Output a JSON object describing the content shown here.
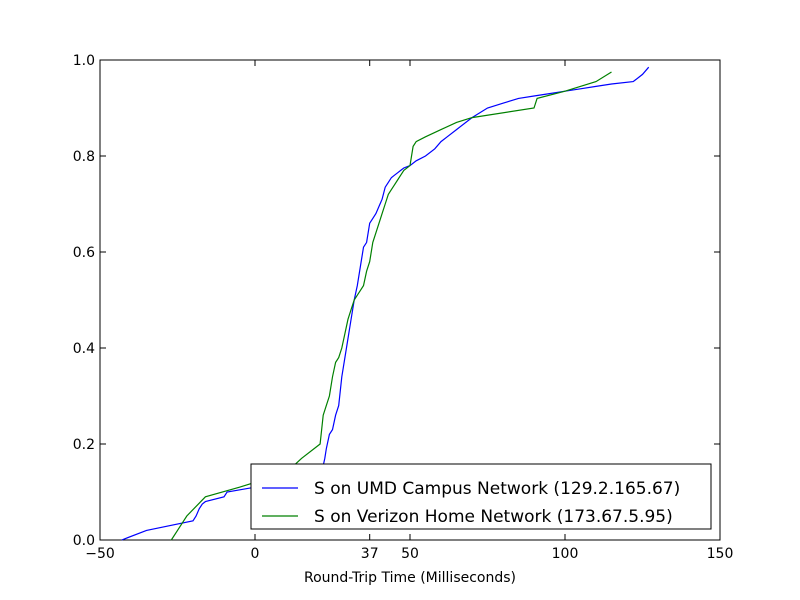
{
  "chart_data": {
    "type": "line",
    "title": "",
    "xlabel": "Round-Trip Time (Milliseconds)",
    "ylabel": "",
    "xlim": [
      -50,
      150
    ],
    "ylim": [
      0.0,
      1.0
    ],
    "grid": false,
    "legend_position": "bottom-right",
    "x_ticks": [
      {
        "value": -50,
        "label": "−50"
      },
      {
        "value": 0,
        "label": "0"
      },
      {
        "value": 37,
        "label": "37"
      },
      {
        "value": 50,
        "label": "50"
      },
      {
        "value": 100,
        "label": "100"
      },
      {
        "value": 150,
        "label": "150"
      }
    ],
    "y_ticks": [
      {
        "value": 0.0,
        "label": "0.0"
      },
      {
        "value": 0.2,
        "label": "0.2"
      },
      {
        "value": 0.4,
        "label": "0.4"
      },
      {
        "value": 0.6,
        "label": "0.6"
      },
      {
        "value": 0.8,
        "label": "0.8"
      },
      {
        "value": 1.0,
        "label": "1.0"
      }
    ],
    "series": [
      {
        "name": "S on UMD Campus Network (129.2.165.67)",
        "color": "#0000ff",
        "x": [
          -43,
          -35,
          -20,
          -19,
          -18,
          -17,
          -16,
          -10,
          -9,
          0,
          10,
          20,
          22,
          22.5,
          23,
          24,
          25,
          26,
          27,
          28,
          29,
          30,
          31,
          32,
          33,
          34,
          35,
          36,
          37,
          38,
          39,
          40,
          41,
          42,
          43,
          44,
          45,
          46,
          47,
          48,
          50,
          52,
          55,
          58,
          60,
          62,
          65,
          70,
          75,
          80,
          85,
          90,
          95,
          100,
          105,
          110,
          115,
          122,
          125,
          127
        ],
        "y": [
          0.0,
          0.02,
          0.04,
          0.05,
          0.065,
          0.075,
          0.08,
          0.09,
          0.1,
          0.11,
          0.12,
          0.14,
          0.155,
          0.17,
          0.19,
          0.22,
          0.23,
          0.26,
          0.28,
          0.34,
          0.38,
          0.42,
          0.46,
          0.5,
          0.53,
          0.57,
          0.61,
          0.62,
          0.66,
          0.67,
          0.68,
          0.695,
          0.71,
          0.735,
          0.745,
          0.755,
          0.76,
          0.765,
          0.77,
          0.775,
          0.78,
          0.79,
          0.8,
          0.815,
          0.83,
          0.84,
          0.855,
          0.88,
          0.9,
          0.91,
          0.92,
          0.925,
          0.93,
          0.935,
          0.94,
          0.945,
          0.95,
          0.955,
          0.97,
          0.985
        ]
      },
      {
        "name": "S on Verizon Home Network (173.67.5.95)",
        "color": "#008000",
        "x": [
          -27,
          -25,
          -22,
          -16,
          -5,
          10,
          15,
          21,
          22,
          23,
          24,
          25,
          26,
          27,
          28,
          29,
          30,
          31,
          32,
          33,
          34,
          35,
          36,
          37,
          38,
          39,
          40,
          41,
          42,
          43,
          44,
          45,
          46,
          47,
          48,
          50,
          51,
          52,
          55,
          60,
          65,
          70,
          90,
          91,
          100,
          110,
          115
        ],
        "y": [
          0.0,
          0.02,
          0.05,
          0.09,
          0.11,
          0.14,
          0.17,
          0.2,
          0.26,
          0.28,
          0.3,
          0.34,
          0.37,
          0.38,
          0.4,
          0.43,
          0.46,
          0.48,
          0.5,
          0.51,
          0.52,
          0.53,
          0.56,
          0.58,
          0.62,
          0.64,
          0.66,
          0.68,
          0.7,
          0.72,
          0.73,
          0.74,
          0.75,
          0.76,
          0.77,
          0.78,
          0.82,
          0.83,
          0.84,
          0.855,
          0.87,
          0.88,
          0.9,
          0.92,
          0.935,
          0.955,
          0.975
        ]
      }
    ]
  }
}
